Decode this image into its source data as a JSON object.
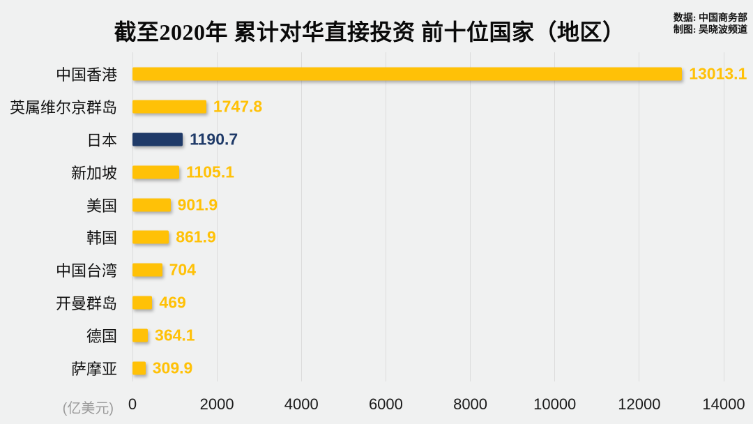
{
  "header": {
    "title": "截至2020年 累计对华直接投资 前十位国家（地区）",
    "credit_data": "数据: 中国商务部",
    "credit_author": "制图: 吴晓波频道"
  },
  "chart_data": {
    "type": "bar",
    "orientation": "horizontal",
    "title": "截至2020年 累计对华直接投资 前十位国家（地区）",
    "unit_label": "(亿美元)",
    "xlabel": "(亿美元)",
    "xlim": [
      0,
      14000
    ],
    "x_ticks": [
      0,
      2000,
      4000,
      6000,
      8000,
      10000,
      12000,
      14000
    ],
    "grid": "vertical-only",
    "legend": "none",
    "categories": [
      "中国香港",
      "英属维尔京群岛",
      "日本",
      "新加坡",
      "美国",
      "韩国",
      "中国台湾",
      "开曼群岛",
      "德国",
      "萨摩亚"
    ],
    "values": [
      13013.1,
      1747.8,
      1190.7,
      1105.1,
      901.9,
      861.9,
      704,
      469,
      364.1,
      309.9
    ],
    "value_labels": [
      "13013.1",
      "1747.8",
      "1190.7",
      "1105.1",
      "901.9",
      "861.9",
      "704",
      "469",
      "364.1",
      "309.9"
    ],
    "highlight_index": 2,
    "colors": {
      "bar": "#ffc107",
      "highlight": "#1f3a68",
      "background": "#f0f1f1",
      "gridline": "#dcdcdc",
      "tick_text": "#1a1a1a",
      "unit_text": "#9b9b9b"
    }
  }
}
